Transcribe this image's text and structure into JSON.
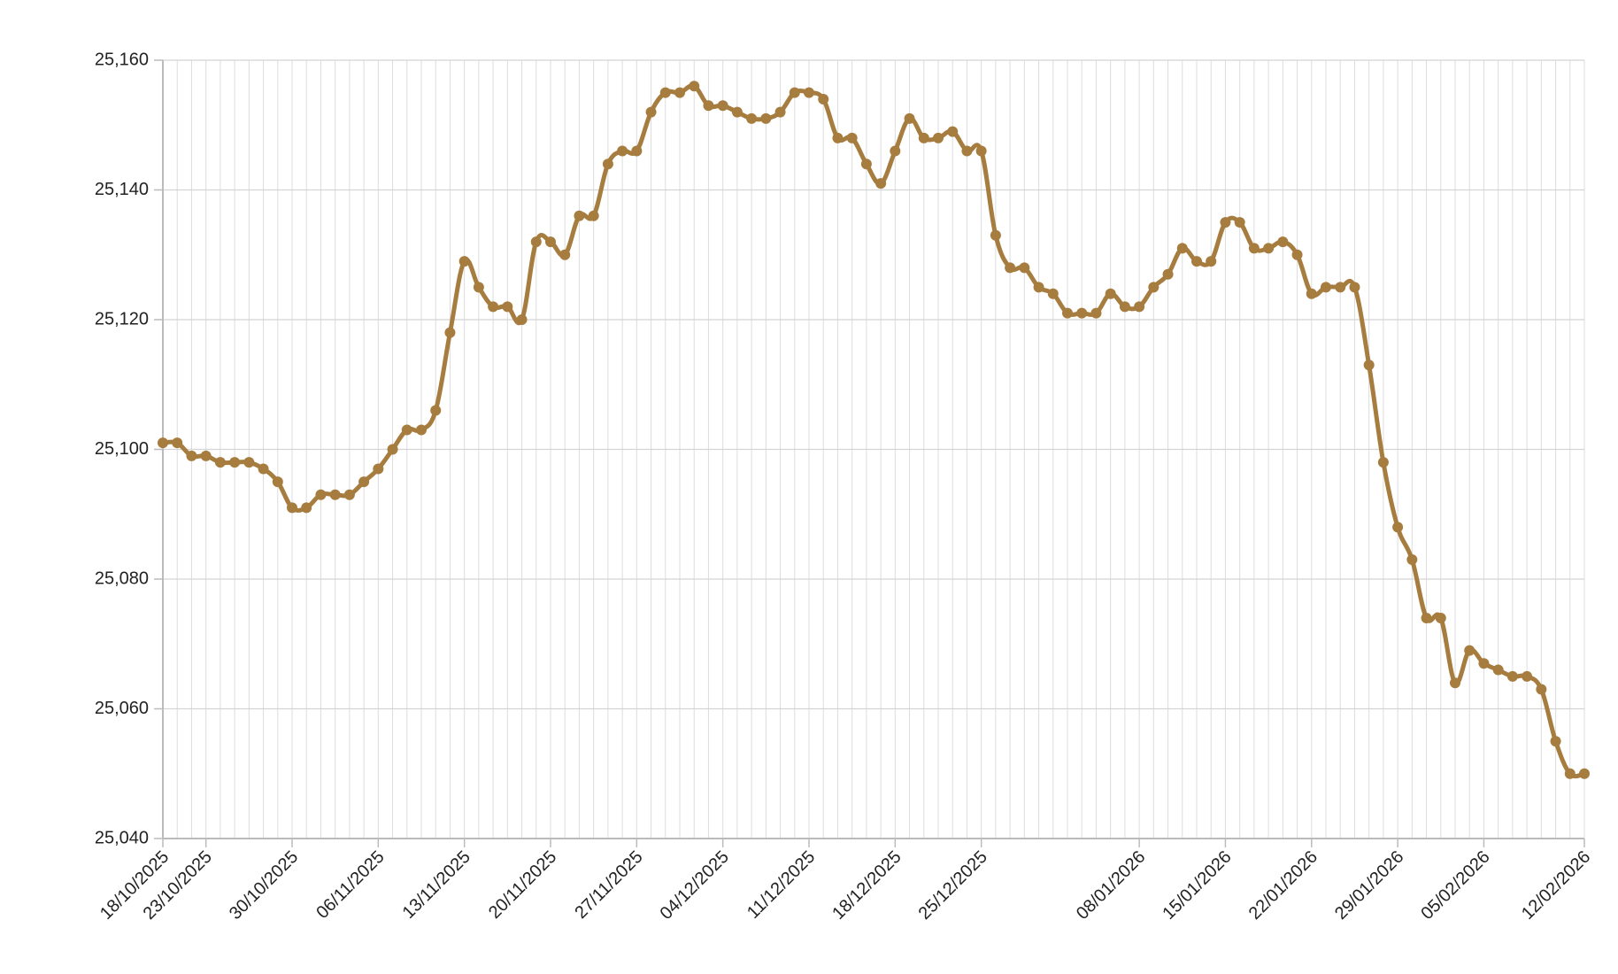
{
  "chart_data": {
    "type": "line",
    "categories": [
      "18/10/2025",
      null,
      null,
      "23/10/2025",
      null,
      null,
      null,
      null,
      null,
      "30/10/2025",
      null,
      null,
      null,
      null,
      null,
      "06/11/2025",
      null,
      null,
      null,
      null,
      null,
      "13/11/2025",
      null,
      null,
      null,
      null,
      null,
      "20/11/2025",
      null,
      null,
      null,
      null,
      null,
      "27/11/2025",
      null,
      null,
      null,
      null,
      null,
      "04/12/2025",
      null,
      null,
      null,
      null,
      null,
      "11/12/2025",
      null,
      null,
      null,
      null,
      null,
      "18/12/2025",
      null,
      null,
      null,
      null,
      null,
      "25/12/2025",
      null,
      null,
      null,
      null,
      null,
      null,
      null,
      null,
      null,
      null,
      "08/01/2026",
      null,
      null,
      null,
      null,
      null,
      "15/01/2026",
      null,
      null,
      null,
      null,
      null,
      "22/01/2026",
      null,
      null,
      null,
      null,
      null,
      "29/01/2026",
      null,
      null,
      null,
      null,
      null,
      "05/02/2026",
      null,
      null,
      null,
      null,
      null,
      null,
      "12/02/2026"
    ],
    "series": [
      {
        "color": "#a67c3f",
        "values": [
          25101,
          25101,
          25099,
          25099,
          25098,
          25098,
          25098,
          25097,
          25095,
          25091,
          25091,
          25093,
          25093,
          25093,
          25095,
          25097,
          25100,
          25103,
          25103,
          25106,
          25118,
          25129,
          25125,
          25122,
          25122,
          25120,
          25132,
          25132,
          25130,
          25136,
          25136,
          25144,
          25146,
          25146,
          25152,
          25155,
          25155,
          25156,
          25153,
          25153,
          25152,
          25151,
          25151,
          25152,
          25155,
          25155,
          25154,
          25148,
          25148,
          25144,
          25141,
          25146,
          25151,
          25148,
          25148,
          25149,
          25146,
          25146,
          25133,
          25128,
          25128,
          25125,
          25124,
          25121,
          25121,
          25121,
          25124,
          25122,
          25122,
          25125,
          25127,
          25131,
          25129,
          25129,
          25135,
          25135,
          25131,
          25131,
          25132,
          25130,
          25124,
          25125,
          25125,
          25125,
          25113,
          25098,
          25088,
          25083,
          25074,
          25074,
          25064,
          25069,
          25067,
          25066,
          25065,
          25065,
          25063,
          25055,
          25050,
          25050
        ]
      }
    ],
    "ylim": [
      25040,
      25160
    ],
    "yticks": [
      {
        "value": 25040,
        "label": "25,040"
      },
      {
        "value": 25060,
        "label": "25,060"
      },
      {
        "value": 25080,
        "label": "25,080"
      },
      {
        "value": 25100,
        "label": "25,100"
      },
      {
        "value": 25120,
        "label": "25,120"
      },
      {
        "value": 25140,
        "label": "25,140"
      },
      {
        "value": 25160,
        "label": "25,160"
      }
    ],
    "grid": true
  }
}
